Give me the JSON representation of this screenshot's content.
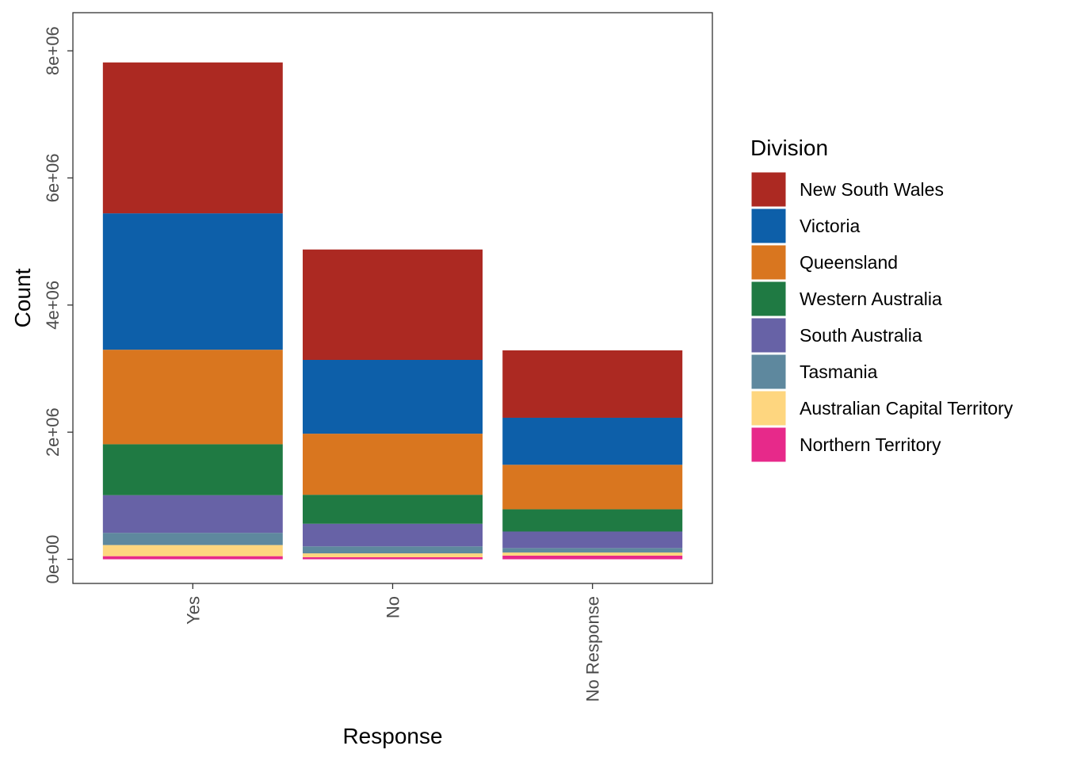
{
  "chart_data": {
    "type": "bar",
    "stacked": true,
    "xlabel": "Response",
    "ylabel": "Count",
    "categories": [
      "Yes",
      "No",
      "No Response"
    ],
    "y_ticks": [
      0,
      2000000,
      4000000,
      6000000,
      8000000
    ],
    "y_tick_labels": [
      "0e+00",
      "2e+06",
      "4e+06",
      "6e+06",
      "8e+06"
    ],
    "ylim": [
      -380000,
      8600000
    ],
    "grid": false,
    "legend": {
      "title": "Division",
      "position": "right"
    },
    "series": [
      {
        "name": "Northern Territory",
        "color": "#E7298A",
        "values": [
          48686,
          31690,
          57000
        ]
      },
      {
        "name": "Australian Capital Territory",
        "color": "#FED67F",
        "values": [
          175459,
          61520,
          50000
        ]
      },
      {
        "name": "Tasmania",
        "color": "#5E889E",
        "values": [
          191948,
          109655,
          70000
        ]
      },
      {
        "name": "South Australia",
        "color": "#6762A6",
        "values": [
          592528,
          356247,
          260000
        ]
      },
      {
        "name": "Western Australia",
        "color": "#1F7A43",
        "values": [
          801575,
          455924,
          350000
        ]
      },
      {
        "name": "Queensland",
        "color": "#D9761F",
        "values": [
          1487060,
          961015,
          700000
        ]
      },
      {
        "name": "Victoria",
        "color": "#0D5FA9",
        "values": [
          2145629,
          1161098,
          740000
        ]
      },
      {
        "name": "New South Wales",
        "color": "#AC2922",
        "values": [
          2374362,
          1736838,
          1060000
        ]
      }
    ]
  }
}
